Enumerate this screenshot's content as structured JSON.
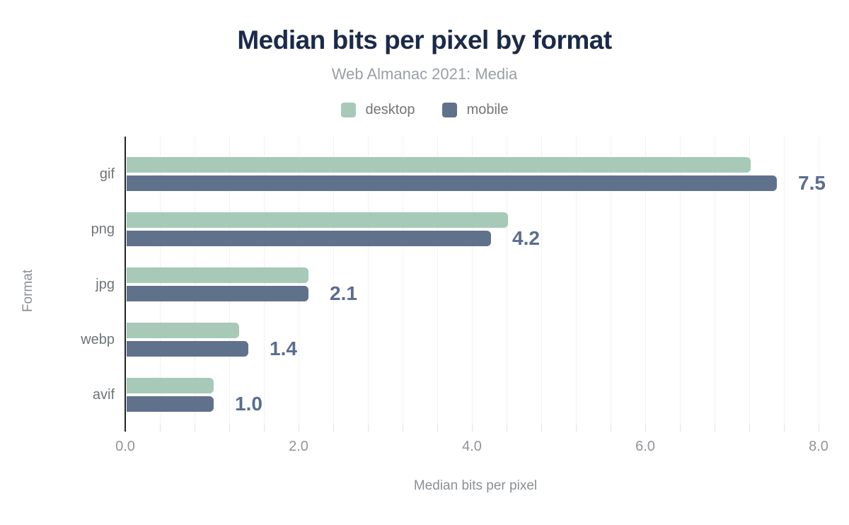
{
  "chart": {
    "title": "Median bits per pixel by format",
    "subtitle": "Web Almanac 2021: Media",
    "x_axis_title": "Median bits per pixel",
    "y_axis_title": "Format"
  },
  "colors": {
    "title": "#1b2a49",
    "desktop": "#a6c9b8",
    "mobile": "#60718c",
    "value_label": "#5a6d90",
    "axis_line": "#232323",
    "gridline": "#f1f1f1"
  },
  "chart_data": {
    "type": "bar",
    "orientation": "horizontal",
    "title": "Median bits per pixel by format",
    "subtitle": "Web Almanac 2021: Media",
    "xlabel": "Median bits per pixel",
    "ylabel": "Format",
    "categories": [
      "gif",
      "png",
      "jpg",
      "webp",
      "avif"
    ],
    "series": [
      {
        "name": "desktop",
        "color": "#a6c9b8",
        "values": [
          7.2,
          4.4,
          2.1,
          1.3,
          1.0
        ]
      },
      {
        "name": "mobile",
        "color": "#60718c",
        "values": [
          7.5,
          4.2,
          2.1,
          1.4,
          1.0
        ]
      }
    ],
    "bar_labels": {
      "series": "mobile",
      "values": [
        "7.5",
        "4.2",
        "2.1",
        "1.4",
        "1.0"
      ]
    },
    "x_ticks": {
      "values": [
        0,
        2,
        4,
        6,
        8
      ],
      "labels": [
        "0.0",
        "2.0",
        "4.0",
        "6.0",
        "8.0"
      ]
    },
    "xlim": [
      0,
      8
    ],
    "grid": "vertical",
    "minor_gridline_step": 0.4,
    "legend_position": "top"
  }
}
